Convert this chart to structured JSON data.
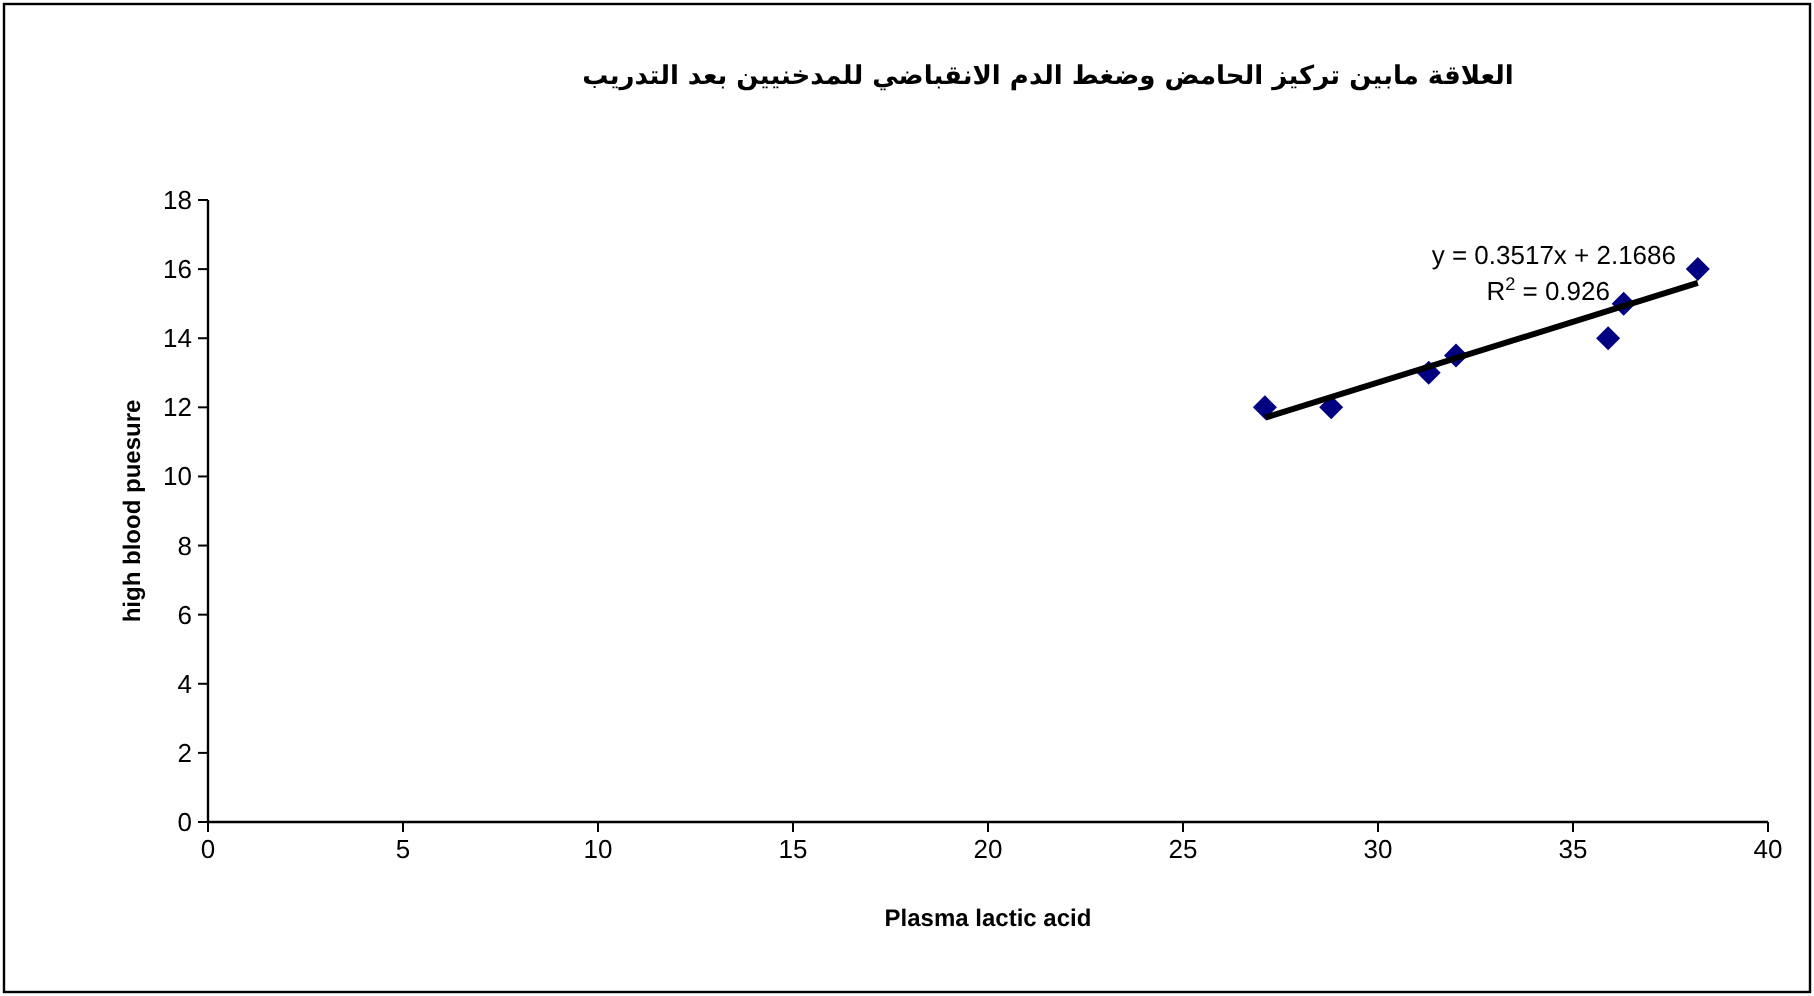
{
  "chart_data": {
    "type": "scatter",
    "title": "العلاقة مابين تركيز الحامض وضغط الدم الانقباضي للمدخنيين بعد التدريب",
    "xlabel": "Plasma lactic acid",
    "ylabel": "high blood puesure",
    "marker": "diamond",
    "grid": false,
    "xlim": [
      0,
      40
    ],
    "ylim": [
      0,
      18
    ],
    "xticks": [
      0,
      5,
      10,
      15,
      20,
      25,
      30,
      35,
      40
    ],
    "yticks": [
      0,
      2,
      4,
      6,
      8,
      10,
      12,
      14,
      16,
      18
    ],
    "series": [
      {
        "color": "#000080",
        "x": [
          27.1,
          28.8,
          31.3,
          32.0,
          35.9,
          36.3,
          38.2
        ],
        "values": [
          12,
          12,
          13,
          13.5,
          14,
          15,
          16
        ]
      },
      {
        "type": "line",
        "marker": "none",
        "color": "#000000",
        "x": [
          27.1,
          38.2
        ],
        "values": [
          11.7,
          15.6
        ]
      }
    ],
    "annotations": [
      "y = 0.3517x + 2.1686",
      "R$^{2}$ = 0.926"
    ]
  }
}
